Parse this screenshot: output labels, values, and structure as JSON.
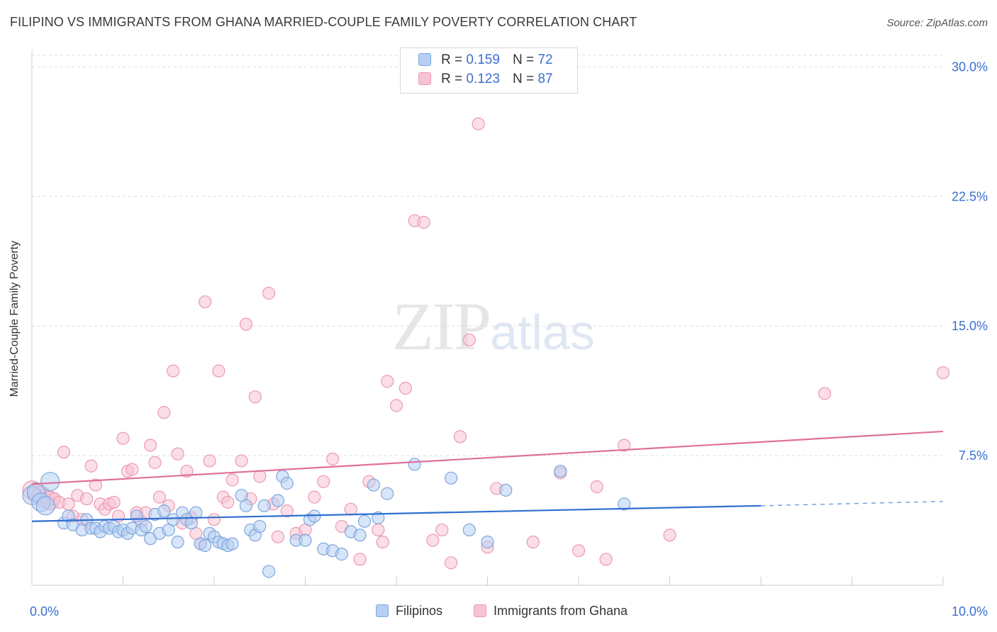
{
  "title": "FILIPINO VS IMMIGRANTS FROM GHANA MARRIED-COUPLE FAMILY POVERTY CORRELATION CHART",
  "source": "Source: ZipAtlas.com",
  "watermark": {
    "zip": "ZIP",
    "atlas": "atlas"
  },
  "stats": {
    "blue": {
      "r_label": "R =",
      "r_value": "0.159",
      "n_label": "N =",
      "n_value": "72"
    },
    "pink": {
      "r_label": "R =",
      "r_value": "0.123",
      "n_label": "N =",
      "n_value": "87"
    }
  },
  "legend": {
    "filipinos": "Filipinos",
    "ghana": "Immigrants from Ghana"
  },
  "colors": {
    "blue_fill": "#b6cff2",
    "blue_stroke": "#7ea6de",
    "blue_line": "#2f6fd0",
    "pink_fill": "#f7c3d2",
    "pink_stroke": "#eb9ab3",
    "pink_line": "#e0709a",
    "tick_label": "#3a6fd0",
    "grid": "#dddddd"
  },
  "chart_data": {
    "type": "scatter",
    "title": "FILIPINO VS IMMIGRANTS FROM GHANA MARRIED-COUPLE FAMILY POVERTY CORRELATION CHART",
    "xlabel": "",
    "ylabel": "Married-Couple Family Poverty",
    "xlim": [
      0,
      10
    ],
    "ylim": [
      0,
      31
    ],
    "x_tick_labels": [
      "0.0%",
      "10.0%"
    ],
    "y_ticks": [
      7.5,
      15.0,
      22.5,
      30.0
    ],
    "y_tick_labels": [
      "7.5%",
      "15.0%",
      "22.5%",
      "30.0%"
    ],
    "grid": true,
    "legend_position": "bottom-center",
    "series": [
      {
        "name": "Filipinos",
        "color": "#b6cff2",
        "trend": {
          "x0": 0,
          "y0": 3.7,
          "x1": 8.0,
          "y1": 4.6,
          "dashed_to_x": 10.0,
          "dashed_to_y": 4.85
        },
        "points": [
          [
            0.0,
            5.2
          ],
          [
            0.05,
            5.4
          ],
          [
            0.1,
            4.8
          ],
          [
            0.15,
            4.6
          ],
          [
            0.2,
            6.0
          ],
          [
            0.35,
            3.6
          ],
          [
            0.4,
            4.0
          ],
          [
            0.45,
            3.5
          ],
          [
            0.55,
            3.2
          ],
          [
            0.6,
            3.8
          ],
          [
            0.65,
            3.3
          ],
          [
            0.7,
            3.3
          ],
          [
            0.75,
            3.1
          ],
          [
            0.8,
            3.4
          ],
          [
            0.85,
            3.3
          ],
          [
            0.9,
            3.4
          ],
          [
            0.95,
            3.1
          ],
          [
            1.0,
            3.2
          ],
          [
            1.05,
            3.0
          ],
          [
            1.1,
            3.3
          ],
          [
            1.15,
            4.0
          ],
          [
            1.2,
            3.2
          ],
          [
            1.25,
            3.4
          ],
          [
            1.3,
            2.7
          ],
          [
            1.35,
            4.1
          ],
          [
            1.4,
            3.0
          ],
          [
            1.45,
            4.3
          ],
          [
            1.5,
            3.2
          ],
          [
            1.55,
            3.8
          ],
          [
            1.6,
            2.5
          ],
          [
            1.65,
            4.2
          ],
          [
            1.7,
            3.8
          ],
          [
            1.75,
            3.6
          ],
          [
            1.8,
            4.2
          ],
          [
            1.85,
            2.4
          ],
          [
            1.9,
            2.3
          ],
          [
            1.95,
            3.0
          ],
          [
            2.0,
            2.8
          ],
          [
            2.05,
            2.5
          ],
          [
            2.1,
            2.4
          ],
          [
            2.15,
            2.3
          ],
          [
            2.2,
            2.4
          ],
          [
            2.3,
            5.2
          ],
          [
            2.35,
            4.6
          ],
          [
            2.4,
            3.2
          ],
          [
            2.45,
            2.9
          ],
          [
            2.5,
            3.4
          ],
          [
            2.55,
            4.6
          ],
          [
            2.6,
            0.8
          ],
          [
            2.7,
            4.9
          ],
          [
            2.75,
            6.3
          ],
          [
            2.8,
            5.9
          ],
          [
            2.9,
            2.6
          ],
          [
            3.0,
            2.6
          ],
          [
            3.05,
            3.8
          ],
          [
            3.1,
            4.0
          ],
          [
            3.2,
            2.1
          ],
          [
            3.3,
            2.0
          ],
          [
            3.4,
            1.8
          ],
          [
            3.5,
            3.1
          ],
          [
            3.6,
            2.9
          ],
          [
            3.65,
            3.7
          ],
          [
            3.75,
            5.8
          ],
          [
            3.8,
            3.9
          ],
          [
            3.9,
            5.3
          ],
          [
            4.2,
            7.0
          ],
          [
            4.6,
            6.2
          ],
          [
            4.8,
            3.2
          ],
          [
            5.0,
            2.5
          ],
          [
            5.2,
            5.5
          ],
          [
            5.8,
            6.6
          ],
          [
            6.5,
            4.7
          ]
        ]
      },
      {
        "name": "Immigrants from Ghana",
        "color": "#f7c3d2",
        "trend": {
          "x0": 0,
          "y0": 5.85,
          "x1": 10.0,
          "y1": 8.9
        },
        "points": [
          [
            0.0,
            5.5
          ],
          [
            0.05,
            5.3
          ],
          [
            0.1,
            5.2
          ],
          [
            0.15,
            5.0
          ],
          [
            0.2,
            4.9
          ],
          [
            0.25,
            5.0
          ],
          [
            0.3,
            4.8
          ],
          [
            0.35,
            7.7
          ],
          [
            0.4,
            4.7
          ],
          [
            0.45,
            4.0
          ],
          [
            0.5,
            5.2
          ],
          [
            0.55,
            3.8
          ],
          [
            0.6,
            5.0
          ],
          [
            0.65,
            6.9
          ],
          [
            0.7,
            5.8
          ],
          [
            0.75,
            4.7
          ],
          [
            0.8,
            4.4
          ],
          [
            0.85,
            4.7
          ],
          [
            0.9,
            4.8
          ],
          [
            0.95,
            4.0
          ],
          [
            1.0,
            8.5
          ],
          [
            1.05,
            6.6
          ],
          [
            1.1,
            6.7
          ],
          [
            1.15,
            4.2
          ],
          [
            1.2,
            3.7
          ],
          [
            1.25,
            4.2
          ],
          [
            1.3,
            8.1
          ],
          [
            1.35,
            7.1
          ],
          [
            1.4,
            5.1
          ],
          [
            1.45,
            10.0
          ],
          [
            1.5,
            4.6
          ],
          [
            1.55,
            12.4
          ],
          [
            1.6,
            7.6
          ],
          [
            1.65,
            3.6
          ],
          [
            1.7,
            6.6
          ],
          [
            1.75,
            3.9
          ],
          [
            1.8,
            3.0
          ],
          [
            1.85,
            2.4
          ],
          [
            1.9,
            16.4
          ],
          [
            1.95,
            7.2
          ],
          [
            2.0,
            3.8
          ],
          [
            2.05,
            12.4
          ],
          [
            2.1,
            5.1
          ],
          [
            2.15,
            4.8
          ],
          [
            2.2,
            6.1
          ],
          [
            2.3,
            7.2
          ],
          [
            2.35,
            15.1
          ],
          [
            2.4,
            5.0
          ],
          [
            2.45,
            10.9
          ],
          [
            2.5,
            6.3
          ],
          [
            2.6,
            16.9
          ],
          [
            2.65,
            4.7
          ],
          [
            2.7,
            2.8
          ],
          [
            2.8,
            4.3
          ],
          [
            2.9,
            3.0
          ],
          [
            3.0,
            3.2
          ],
          [
            3.1,
            5.1
          ],
          [
            3.2,
            6.0
          ],
          [
            3.3,
            7.3
          ],
          [
            3.4,
            3.4
          ],
          [
            3.5,
            4.4
          ],
          [
            3.6,
            1.5
          ],
          [
            3.7,
            6.0
          ],
          [
            3.8,
            3.2
          ],
          [
            3.85,
            2.5
          ],
          [
            3.9,
            11.8
          ],
          [
            4.0,
            10.4
          ],
          [
            4.1,
            11.4
          ],
          [
            4.2,
            21.1
          ],
          [
            4.3,
            21.0
          ],
          [
            4.4,
            2.6
          ],
          [
            4.5,
            3.2
          ],
          [
            4.6,
            1.3
          ],
          [
            4.7,
            8.6
          ],
          [
            4.8,
            14.2
          ],
          [
            4.9,
            26.7
          ],
          [
            5.0,
            2.2
          ],
          [
            5.1,
            5.6
          ],
          [
            5.5,
            2.5
          ],
          [
            5.8,
            6.5
          ],
          [
            6.0,
            2.0
          ],
          [
            6.2,
            5.7
          ],
          [
            6.3,
            1.5
          ],
          [
            6.5,
            8.1
          ],
          [
            7.0,
            2.9
          ],
          [
            8.7,
            11.1
          ],
          [
            10.0,
            12.3
          ]
        ]
      }
    ]
  }
}
